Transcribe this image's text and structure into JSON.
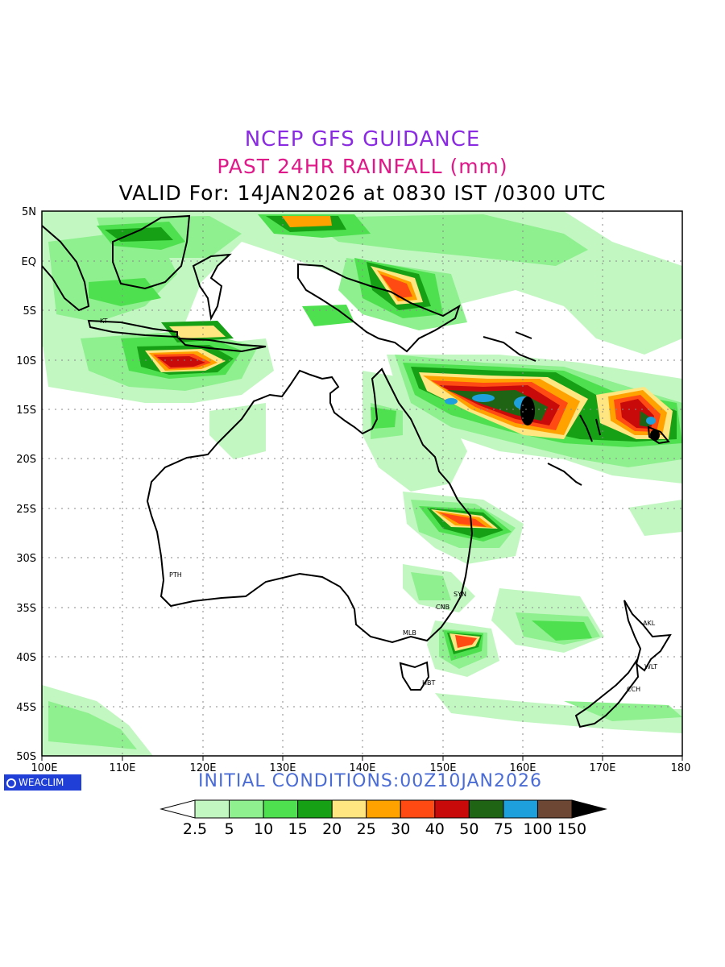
{
  "title_line1": "NCEP GFS GUIDANCE",
  "title_line2": "PAST 24HR RAINFALL (mm)",
  "title_line3": "VALID For: 14JAN2026 at 0830 IST /0300 UTC",
  "lat_labels": [
    "5N",
    "EQ",
    "5S",
    "10S",
    "15S",
    "20S",
    "25S",
    "30S",
    "35S",
    "40S",
    "45S",
    "50S"
  ],
  "lon_labels": [
    "100E",
    "110E",
    "120E",
    "130E",
    "140E",
    "150E",
    "160E",
    "170E",
    "180"
  ],
  "cities": [
    {
      "code": "KT"
    },
    {
      "code": "PTH"
    },
    {
      "code": "SYN"
    },
    {
      "code": "CNB"
    },
    {
      "code": "MLB"
    },
    {
      "code": "HBT"
    },
    {
      "code": "AKL"
    },
    {
      "code": "WLT"
    },
    {
      "code": "CCH"
    }
  ],
  "logo": "WEACLIM",
  "initial_conditions": "INITIAL  CONDITIONS:00Z10JAN2026",
  "scale": {
    "values": [
      "2.5",
      "5",
      "10",
      "15",
      "20",
      "25",
      "30",
      "40",
      "50",
      "75",
      "100",
      "150"
    ],
    "colors": [
      "#ffffff",
      "#c2f7c2",
      "#8ef08e",
      "#4ee04e",
      "#16a016",
      "#ffe680",
      "#ffa200",
      "#ff4a14",
      "#c80a0a",
      "#1e6414",
      "#1ea0dc",
      "#6e4634",
      "#000000"
    ]
  }
}
